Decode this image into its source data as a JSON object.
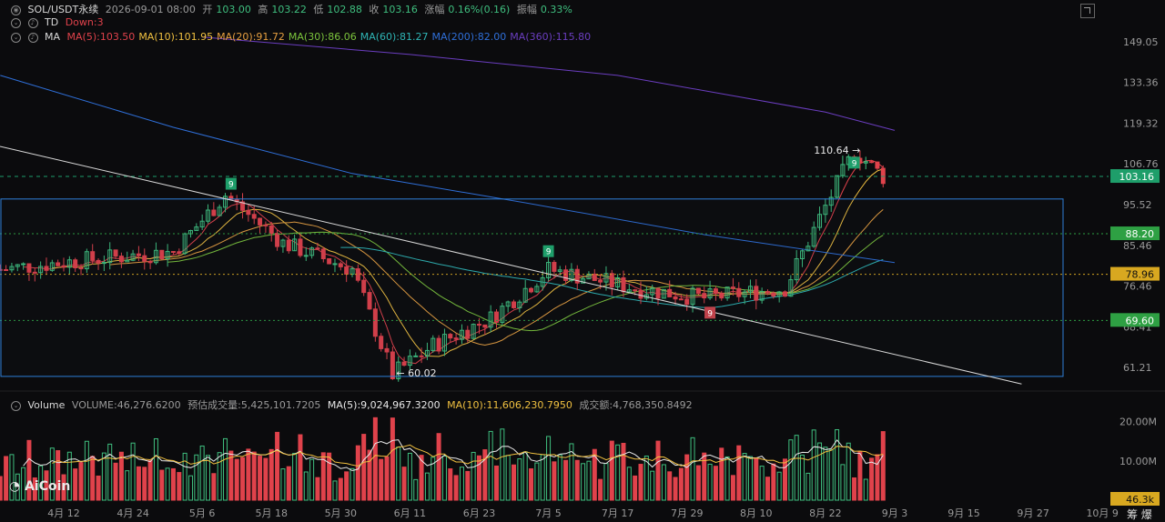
{
  "header": {
    "symbol": "SOL/USDT永续",
    "datetime": "2026-09-01 08:00",
    "open_label": "开",
    "open": "103.00",
    "high_label": "高",
    "high": "103.22",
    "low_label": "低",
    "low": "102.88",
    "close_label": "收",
    "close": "103.16",
    "change_label": "涨幅",
    "change": "0.16%(0.16)",
    "amp_label": "振幅",
    "amp": "0.33%"
  },
  "td": {
    "label": "TD",
    "value": "Down:3"
  },
  "ma_legend": {
    "label": "MA",
    "items": [
      {
        "text": "MA(5):103.50",
        "color": "#e0424b"
      },
      {
        "text": "MA(10):101.95",
        "color": "#f0c040"
      },
      {
        "text": "MA(20):91.72",
        "color": "#e8a040"
      },
      {
        "text": "MA(30):86.06",
        "color": "#7cc43c"
      },
      {
        "text": "MA(60):81.27",
        "color": "#2fb5b5"
      },
      {
        "text": "MA(200):82.00",
        "color": "#2f6fd8"
      },
      {
        "text": "MA(360):115.80",
        "color": "#6b3ec0"
      }
    ]
  },
  "volume_legend": {
    "label": "Volume",
    "volume": "VOLUME:46,276.6200",
    "est": "预估成交量:5,425,101.7205",
    "ma5": "MA(5):9,024,967.3200",
    "ma10": "MA(10):11,606,230.7950",
    "turnover": "成交额:4,768,350.8492",
    "ma5_color": "#e8e8e8",
    "ma10_color": "#f0c040"
  },
  "price_axis": [
    "149.05",
    "133.36",
    "119.32",
    "106.76",
    "95.52",
    "85.46",
    "76.46",
    "68.41",
    "61.21"
  ],
  "price_tags": [
    {
      "text": "103.16",
      "color": "#1e9e6a",
      "price": 103.16
    },
    {
      "text": "88.20",
      "color": "#2ea043",
      "price": 88.2
    },
    {
      "text": "78.96",
      "color": "#d8a820",
      "price": 78.96
    },
    {
      "text": "69.60",
      "color": "#2ea043",
      "price": 69.6
    }
  ],
  "volume_axis": [
    "20.00M",
    "10.00M"
  ],
  "volume_tag": "46.3k",
  "date_axis": [
    "4月 12",
    "4月 24",
    "5月 6",
    "5月 18",
    "5月 30",
    "6月 11",
    "6月 23",
    "7月 5",
    "7月 17",
    "7月 29",
    "8月 10",
    "8月 22",
    "9月 3",
    "9月 15",
    "9月 27",
    "10月 9"
  ],
  "annotations": {
    "high": "110.64",
    "low": "60.02",
    "td_marks": [
      "9",
      "9",
      "9",
      "9"
    ]
  },
  "brand": "AiCoin",
  "corner": "筹 爆",
  "chart_data": {
    "type": "candlestick",
    "interval": "1 day",
    "x_range": [
      "2026-04-01",
      "2026-10-09"
    ],
    "y_scale": "log",
    "y_range": [
      58,
      158
    ],
    "ohlc_key_points": [
      {
        "date": "2026-04-01",
        "close": 80
      },
      {
        "date": "2026-04-15",
        "close": 82
      },
      {
        "date": "2026-05-01",
        "close": 84
      },
      {
        "date": "2026-05-10",
        "close": 98
      },
      {
        "date": "2026-05-20",
        "close": 86
      },
      {
        "date": "2026-06-01",
        "close": 80
      },
      {
        "date": "2026-06-08",
        "close": 60.02
      },
      {
        "date": "2026-06-15",
        "close": 65
      },
      {
        "date": "2026-06-25",
        "close": 70
      },
      {
        "date": "2026-07-05",
        "close": 80
      },
      {
        "date": "2026-07-20",
        "close": 76
      },
      {
        "date": "2026-08-01",
        "close": 74
      },
      {
        "date": "2026-08-15",
        "close": 76
      },
      {
        "date": "2026-08-22",
        "close": 95
      },
      {
        "date": "2026-08-27",
        "close": 110.64
      },
      {
        "date": "2026-09-01",
        "close": 103.16
      }
    ],
    "horizontal_lines": [
      88.2,
      78.96,
      69.6,
      103.16
    ],
    "volume_max": "20.00M"
  }
}
